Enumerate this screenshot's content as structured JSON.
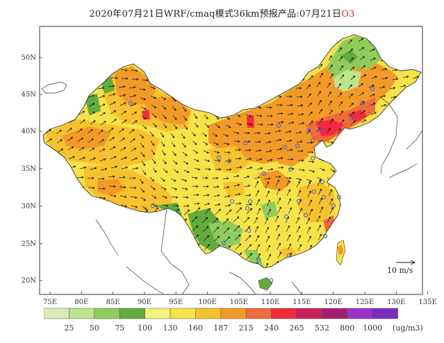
{
  "title": {
    "prefix": "2020年07月21日WRF/cmaq模式36km预报产品:07月21日",
    "pollutant": "O3",
    "pollutant_color": "#d93025"
  },
  "map": {
    "lat_labels": [
      "50N",
      "45N",
      "40N",
      "35N",
      "30N",
      "25N",
      "20N"
    ],
    "lon_labels": [
      "75E",
      "80E",
      "85E",
      "90E",
      "95E",
      "100E",
      "105E",
      "110E",
      "115E",
      "120E",
      "125E",
      "130E",
      "135E"
    ],
    "lon_range": [
      72,
      135
    ],
    "lat_range": [
      18,
      55
    ],
    "vector_reference": "10 m/s"
  },
  "legend": {
    "unit": "(ug/m3)",
    "thresholds": [
      "25",
      "50",
      "75",
      "100",
      "130",
      "160",
      "187",
      "215",
      "240",
      "265",
      "532",
      "800",
      "1000"
    ],
    "colors": [
      "#d9ecb8",
      "#bde38c",
      "#8fcc5c",
      "#63ab3f",
      "#f4f27a",
      "#f6e34a",
      "#f6c12e",
      "#f29a28",
      "#f06a3c",
      "#f22b3c",
      "#cc1f5c",
      "#a01f6e",
      "#9c33c8",
      "#7a2fb8"
    ]
  }
}
